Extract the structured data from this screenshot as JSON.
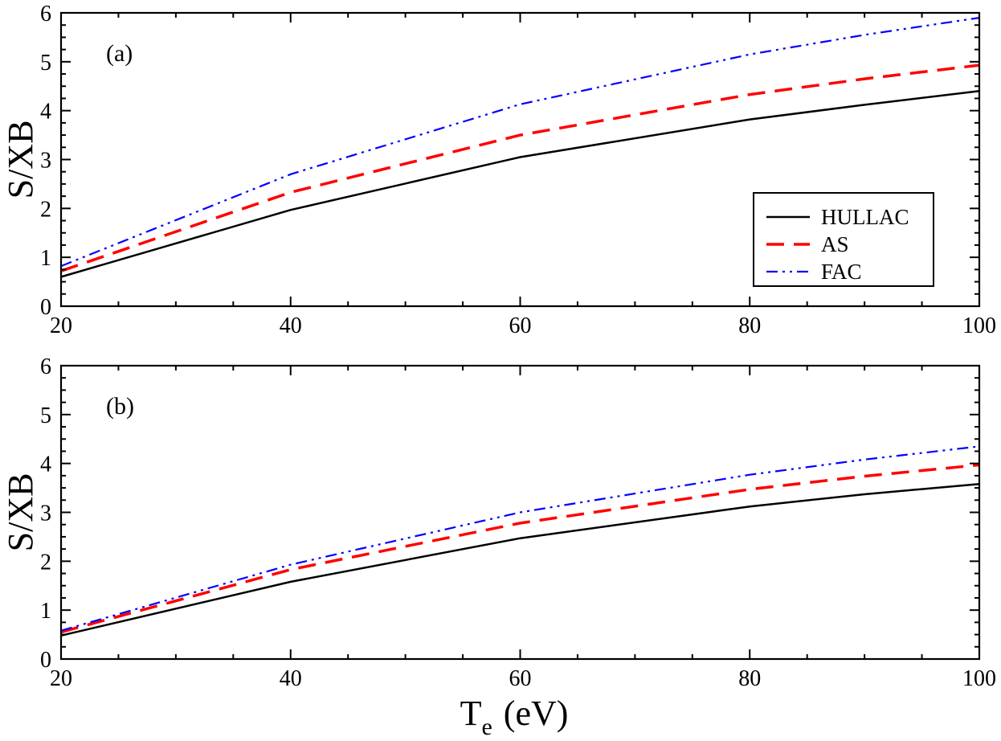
{
  "figure": {
    "xlabel_main": "T",
    "xlabel_sub": "e",
    "xlabel_unit": "(eV)"
  },
  "colors": {
    "HULLAC": "#000000",
    "AS": "#ff0000",
    "FAC": "#0000ff",
    "axes": "#000000",
    "background": "#ffffff"
  },
  "chart_data": [
    {
      "type": "line",
      "panel_label": "(a)",
      "title": "",
      "xlabel": "",
      "ylabel": "S/XB",
      "xlim": [
        20,
        100
      ],
      "ylim": [
        0,
        6
      ],
      "xticks": [
        "20",
        "40",
        "60",
        "80",
        "100"
      ],
      "yticks": [
        "0",
        "1",
        "2",
        "3",
        "4",
        "5",
        "6"
      ],
      "legend": {
        "position": "bottom-right",
        "entries": [
          "HULLAC",
          "AS",
          "FAC"
        ]
      },
      "x": [
        20,
        40,
        60,
        80,
        90,
        100
      ],
      "series": [
        {
          "name": "HULLAC",
          "style": "solid",
          "values": [
            0.6,
            1.97,
            3.05,
            3.82,
            4.12,
            4.4
          ]
        },
        {
          "name": "AS",
          "style": "dashed",
          "values": [
            0.72,
            2.33,
            3.5,
            4.33,
            4.65,
            4.93
          ]
        },
        {
          "name": "FAC",
          "style": "dash-dot-dot",
          "values": [
            0.82,
            2.7,
            4.13,
            5.15,
            5.55,
            5.9
          ]
        }
      ]
    },
    {
      "type": "line",
      "panel_label": "(b)",
      "title": "",
      "xlabel": "T_e (eV)",
      "ylabel": "S/XB",
      "xlim": [
        20,
        100
      ],
      "ylim": [
        0,
        6
      ],
      "xticks": [
        "20",
        "40",
        "60",
        "80",
        "100"
      ],
      "yticks": [
        "0",
        "1",
        "2",
        "3",
        "4",
        "5",
        "6"
      ],
      "legend": null,
      "x": [
        20,
        40,
        60,
        80,
        90,
        100
      ],
      "series": [
        {
          "name": "HULLAC",
          "style": "solid",
          "values": [
            0.48,
            1.58,
            2.47,
            3.12,
            3.37,
            3.58
          ]
        },
        {
          "name": "AS",
          "style": "dashed",
          "values": [
            0.55,
            1.83,
            2.78,
            3.47,
            3.74,
            3.97
          ]
        },
        {
          "name": "FAC",
          "style": "dash-dot-dot",
          "values": [
            0.58,
            1.93,
            3.0,
            3.77,
            4.08,
            4.35
          ]
        }
      ]
    }
  ]
}
